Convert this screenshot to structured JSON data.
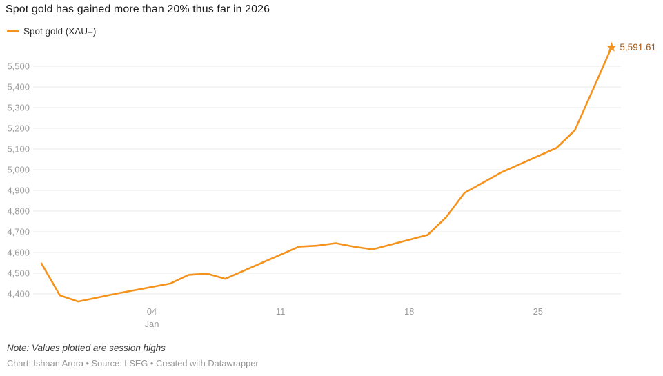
{
  "header": {
    "title": "Spot gold has gained more than 20% thus far in 2026"
  },
  "legend": {
    "label": "Spot gold (XAU=)"
  },
  "chart_data": {
    "type": "line",
    "title": "Spot gold has gained more than 20% thus far in 2026",
    "xlabel": "",
    "ylabel": "",
    "grid": "horizontal",
    "legend_position": "top-left",
    "ylim": [
      4330,
      5620
    ],
    "series": [
      {
        "name": "Spot gold (XAU=)",
        "x": [
          "2025-12-29",
          "2025-12-30",
          "2025-12-31",
          "2026-01-02",
          "2026-01-05",
          "2026-01-06",
          "2026-01-07",
          "2026-01-08",
          "2026-01-09",
          "2026-01-12",
          "2026-01-13",
          "2026-01-14",
          "2026-01-15",
          "2026-01-16",
          "2026-01-19",
          "2026-01-20",
          "2026-01-21",
          "2026-01-22",
          "2026-01-23",
          "2026-01-26",
          "2026-01-27",
          "2026-01-28",
          "2026-01-29"
        ],
        "values": [
          4547,
          4393,
          4363,
          4400,
          4450,
          4492,
          4498,
          4473,
          4512,
          4628,
          4633,
          4645,
          4628,
          4615,
          4685,
          4770,
          4888,
          4937,
          4987,
          5105,
          5190,
          5390,
          5591.61
        ]
      }
    ],
    "y_ticks": [
      {
        "value": 4400,
        "label": "4,400"
      },
      {
        "value": 4500,
        "label": "4,500"
      },
      {
        "value": 4600,
        "label": "4,600"
      },
      {
        "value": 4700,
        "label": "4,700"
      },
      {
        "value": 4800,
        "label": "4,800"
      },
      {
        "value": 4900,
        "label": "4,900"
      },
      {
        "value": 5000,
        "label": "5,000"
      },
      {
        "value": 5100,
        "label": "5,100"
      },
      {
        "value": 5200,
        "label": "5,200"
      },
      {
        "value": 5300,
        "label": "5,300"
      },
      {
        "value": 5400,
        "label": "5,400"
      },
      {
        "value": 5500,
        "label": "5,500"
      }
    ],
    "x_ticks": [
      {
        "date": "2026-01-04",
        "label": "04",
        "sublabel": "Jan"
      },
      {
        "date": "2026-01-11",
        "label": "11",
        "sublabel": ""
      },
      {
        "date": "2026-01-18",
        "label": "18",
        "sublabel": ""
      },
      {
        "date": "2026-01-25",
        "label": "25",
        "sublabel": ""
      }
    ],
    "end_label": "5,591.61",
    "end_marker": "star",
    "colors": {
      "line": "#F5921B",
      "star": "#F5921B",
      "end_label": "#A85B17",
      "axis_text": "#9B9B9B",
      "grid": "#E8E8E8"
    }
  },
  "footer": {
    "note": "Note: Values plotted are session highs",
    "credit": "Chart: Ishaan Arora • Source: LSEG • Created with Datawrapper"
  }
}
